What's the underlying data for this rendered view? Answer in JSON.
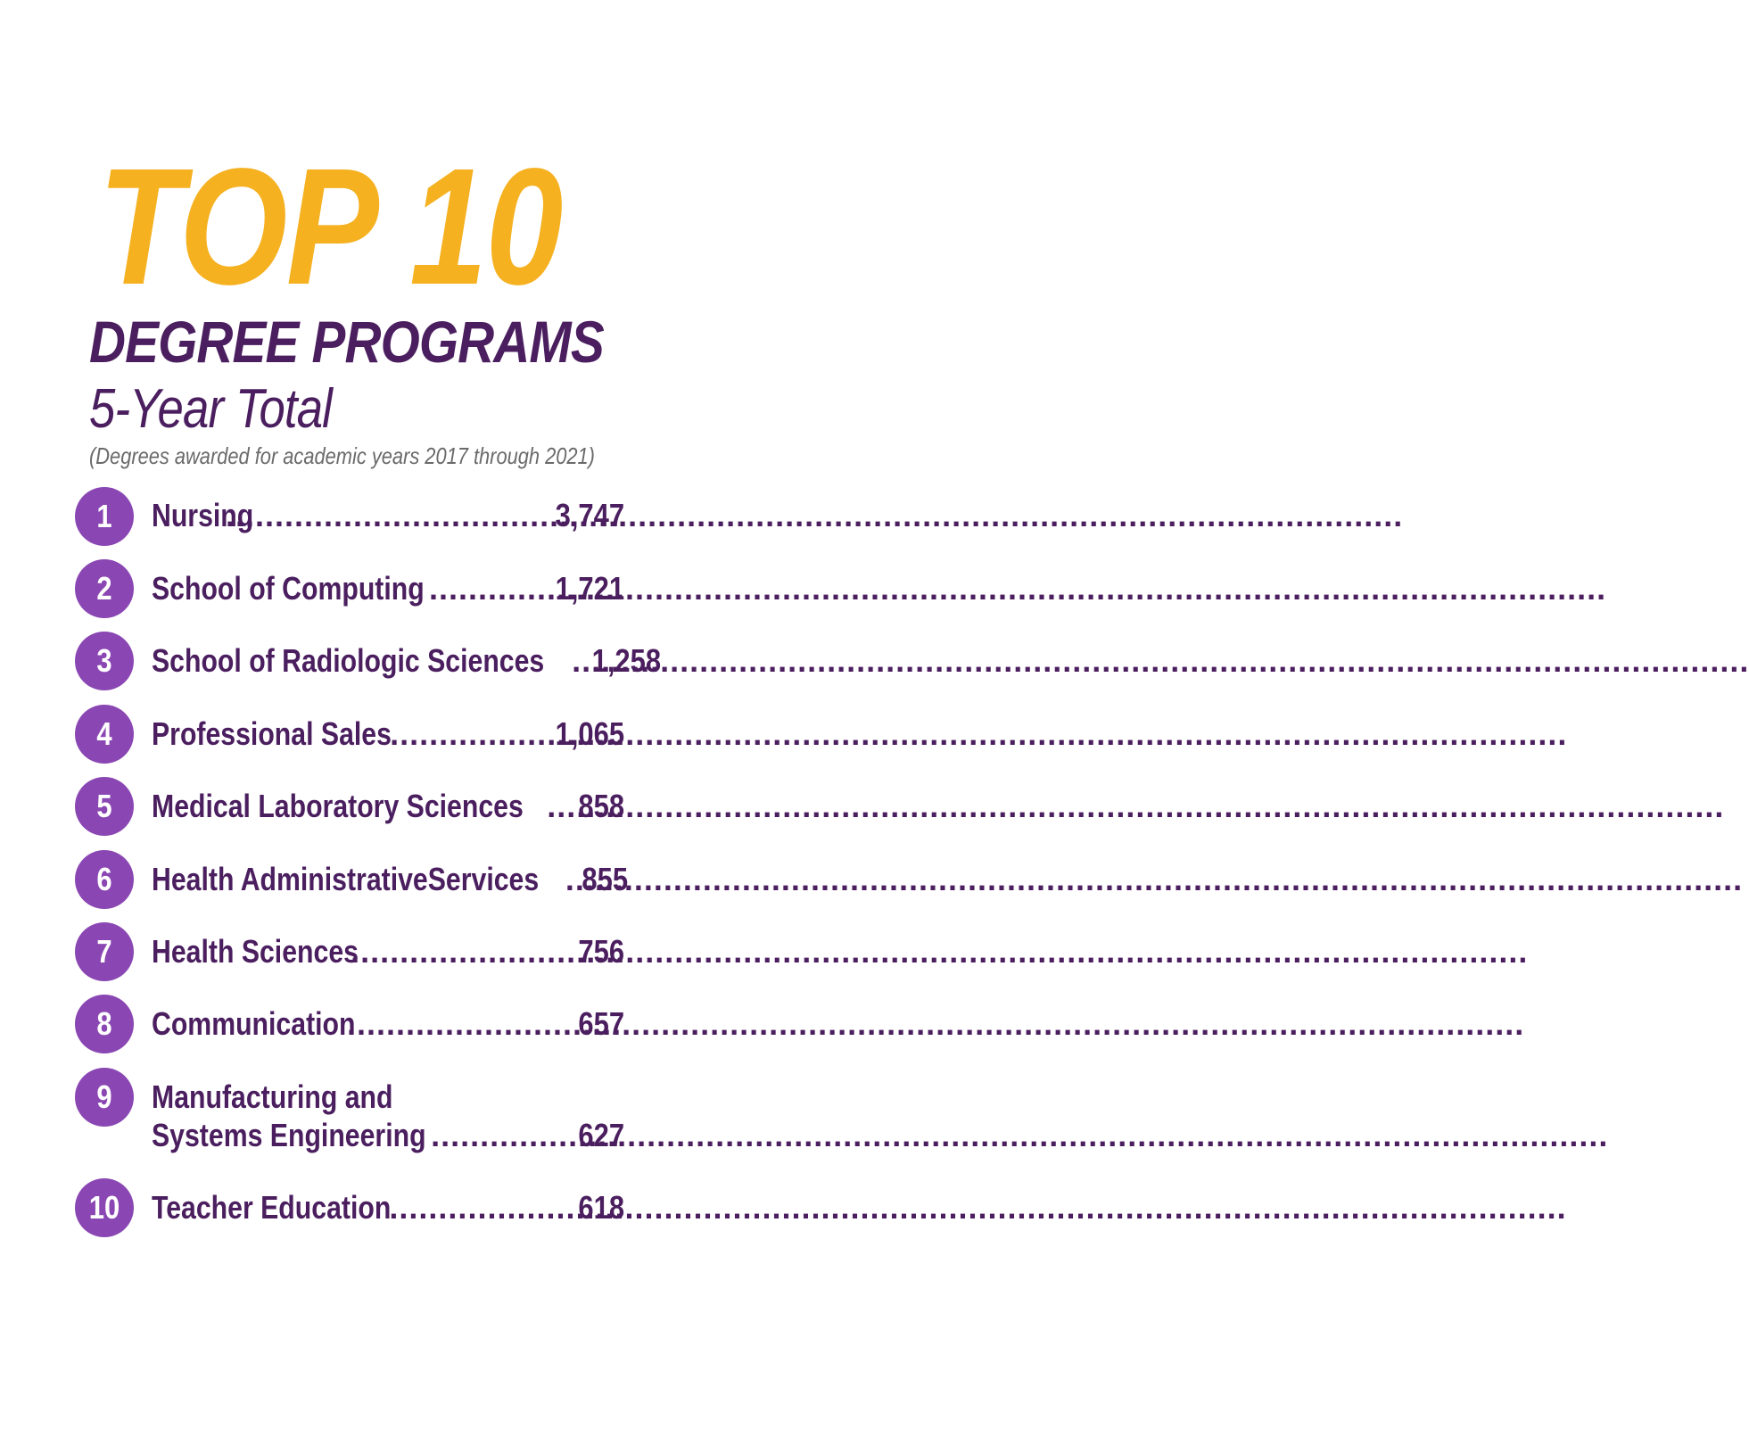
{
  "header": {
    "title": "TOP 10",
    "subtitle": "DEGREE PROGRAMS",
    "total_label": "5-Year Total",
    "note": "(Degrees awarded for academic years 2017 through 2021)"
  },
  "programs": [
    {
      "rank": "1",
      "name": "Nursing",
      "value": "3,747"
    },
    {
      "rank": "2",
      "name": "School of Computing",
      "value": "1,721"
    },
    {
      "rank": "3",
      "name": "School of Radiologic Sciences",
      "value": "1,258"
    },
    {
      "rank": "4",
      "name": "Professional Sales",
      "value": "1,065"
    },
    {
      "rank": "5",
      "name": "Medical Laboratory Sciences",
      "value": "858"
    },
    {
      "rank": "6",
      "name": "Health AdministrativeServices",
      "value": "855"
    },
    {
      "rank": "7",
      "name": "Health Sciences",
      "value": "756"
    },
    {
      "rank": "8",
      "name": "Communication",
      "value": "657"
    },
    {
      "rank": "9",
      "name_line1": "Manufacturing and",
      "name": "Systems Engineering",
      "value": "627"
    },
    {
      "rank": "10",
      "name": "Teacher Education",
      "value": "618"
    }
  ],
  "colors": {
    "gold": "#f5b120",
    "purple_dark": "#4b1f5f",
    "purple_circle": "#8a47b3"
  }
}
